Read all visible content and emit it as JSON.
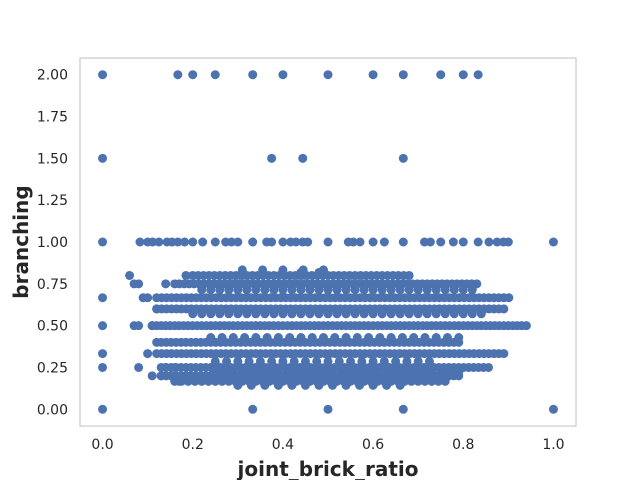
{
  "chart_data": {
    "type": "scatter",
    "xlabel": "joint_brick_ratio",
    "ylabel": "branching",
    "xlim": [
      -0.05,
      1.05
    ],
    "ylim": [
      -0.1,
      2.1
    ],
    "grid": false,
    "x_ticks": [
      0.0,
      0.2,
      0.4,
      0.6,
      0.8,
      1.0
    ],
    "x_tick_labels": [
      "0.0",
      "0.2",
      "0.4",
      "0.6",
      "0.8",
      "1.0"
    ],
    "y_ticks": [
      0.0,
      0.25,
      0.5,
      0.75,
      1.0,
      1.25,
      1.5,
      1.75,
      2.0
    ],
    "y_tick_labels": [
      "0.00",
      "0.25",
      "0.50",
      "0.75",
      "1.00",
      "1.25",
      "1.50",
      "1.75",
      "2.00"
    ],
    "colors": {
      "marker": "#4c72b0",
      "frame": "#cccccc",
      "text": "#262626"
    },
    "points": [
      [
        0.0,
        2.0
      ],
      [
        0.167,
        2.0
      ],
      [
        0.2,
        2.0
      ],
      [
        0.25,
        2.0
      ],
      [
        0.333,
        2.0
      ],
      [
        0.4,
        2.0
      ],
      [
        0.5,
        2.0
      ],
      [
        0.6,
        2.0
      ],
      [
        0.667,
        2.0
      ],
      [
        0.75,
        2.0
      ],
      [
        0.8,
        2.0
      ],
      [
        0.833,
        2.0
      ],
      [
        0.0,
        1.5
      ],
      [
        0.375,
        1.5
      ],
      [
        0.444,
        1.5
      ],
      [
        0.667,
        1.5
      ],
      [
        0.0,
        1.0
      ],
      [
        0.083,
        1.0
      ],
      [
        0.1,
        1.0
      ],
      [
        0.111,
        1.0
      ],
      [
        0.125,
        1.0
      ],
      [
        0.143,
        1.0
      ],
      [
        0.154,
        1.0
      ],
      [
        0.167,
        1.0
      ],
      [
        0.182,
        1.0
      ],
      [
        0.2,
        1.0
      ],
      [
        0.222,
        1.0
      ],
      [
        0.25,
        1.0
      ],
      [
        0.273,
        1.0
      ],
      [
        0.286,
        1.0
      ],
      [
        0.3,
        1.0
      ],
      [
        0.333,
        1.0
      ],
      [
        0.364,
        1.0
      ],
      [
        0.375,
        1.0
      ],
      [
        0.4,
        1.0
      ],
      [
        0.417,
        1.0
      ],
      [
        0.429,
        1.0
      ],
      [
        0.444,
        1.0
      ],
      [
        0.455,
        1.0
      ],
      [
        0.5,
        1.0
      ],
      [
        0.545,
        1.0
      ],
      [
        0.556,
        1.0
      ],
      [
        0.571,
        1.0
      ],
      [
        0.6,
        1.0
      ],
      [
        0.625,
        1.0
      ],
      [
        0.667,
        1.0
      ],
      [
        0.714,
        1.0
      ],
      [
        0.727,
        1.0
      ],
      [
        0.75,
        1.0
      ],
      [
        0.778,
        1.0
      ],
      [
        0.8,
        1.0
      ],
      [
        0.833,
        1.0
      ],
      [
        0.857,
        1.0
      ],
      [
        0.875,
        1.0
      ],
      [
        0.889,
        1.0
      ],
      [
        0.9,
        1.0
      ],
      [
        1.0,
        1.0
      ],
      [
        0.0,
        0.667
      ],
      [
        0.0,
        0.5
      ],
      [
        0.0,
        0.333
      ],
      [
        0.0,
        0.25
      ],
      [
        0.0,
        0.0
      ],
      [
        0.333,
        0.0
      ],
      [
        0.5,
        0.0
      ],
      [
        0.667,
        0.0
      ],
      [
        1.0,
        0.0
      ],
      [
        0.06,
        0.8
      ],
      [
        0.07,
        0.75
      ],
      [
        0.08,
        0.75
      ],
      [
        0.07,
        0.5
      ],
      [
        0.08,
        0.5
      ],
      [
        0.08,
        0.25
      ],
      [
        0.09,
        0.667
      ],
      [
        0.1,
        0.667
      ],
      [
        0.1,
        0.333
      ],
      [
        0.11,
        0.5
      ],
      [
        0.11,
        0.2
      ],
      [
        0.12,
        0.6
      ],
      [
        0.12,
        0.4
      ],
      [
        0.13,
        0.2
      ],
      [
        0.14,
        0.25
      ],
      [
        0.14,
        0.75
      ],
      [
        0.16,
        0.75
      ],
      [
        0.16,
        0.25
      ],
      [
        0.17,
        0.167
      ],
      [
        0.185,
        0.8
      ],
      [
        0.185,
        0.2
      ]
    ],
    "band_dense_ranges": [
      {
        "y": 0.8,
        "x": [
          0.2,
          0.68
        ],
        "step": 0.012
      },
      {
        "y": 0.75,
        "x": [
          0.17,
          0.84
        ],
        "step": 0.011
      },
      {
        "y": 0.714,
        "x": [
          0.22,
          0.82
        ],
        "step": 0.02
      },
      {
        "y": 0.667,
        "x": [
          0.12,
          0.91
        ],
        "step": 0.011
      },
      {
        "y": 0.6,
        "x": [
          0.12,
          0.89
        ],
        "step": 0.011
      },
      {
        "y": 0.571,
        "x": [
          0.2,
          0.85
        ],
        "step": 0.02
      },
      {
        "y": 0.5,
        "x": [
          0.11,
          0.94
        ],
        "step": 0.01
      },
      {
        "y": 0.429,
        "x": [
          0.24,
          0.8
        ],
        "step": 0.025
      },
      {
        "y": 0.4,
        "x": [
          0.13,
          0.8
        ],
        "step": 0.011
      },
      {
        "y": 0.333,
        "x": [
          0.12,
          0.9
        ],
        "step": 0.011
      },
      {
        "y": 0.286,
        "x": [
          0.25,
          0.74
        ],
        "step": 0.025
      },
      {
        "y": 0.25,
        "x": [
          0.13,
          0.86
        ],
        "step": 0.011
      },
      {
        "y": 0.222,
        "x": [
          0.25,
          0.8
        ],
        "step": 0.02
      },
      {
        "y": 0.2,
        "x": [
          0.13,
          0.79
        ],
        "step": 0.011
      },
      {
        "y": 0.167,
        "x": [
          0.16,
          0.76
        ],
        "step": 0.015
      },
      {
        "y": 0.143,
        "x": [
          0.3,
          0.67
        ],
        "step": 0.03
      },
      {
        "y": 0.833,
        "x": [
          0.31,
          0.5
        ],
        "step": 0.045
      },
      {
        "y": 0.818,
        "x": [
          0.4,
          0.5
        ],
        "step": 0.04
      }
    ]
  }
}
